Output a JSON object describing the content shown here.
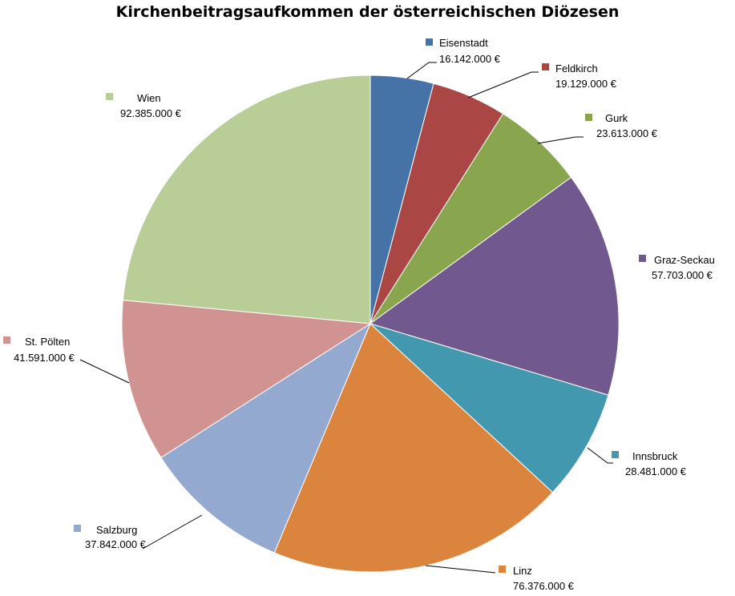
{
  "chart_data": {
    "type": "pie",
    "title": "Kirchenbeitragsaufkommen der österreichischen Diözesen",
    "legend": "none",
    "labels_outside": true,
    "slices": [
      {
        "name": "Eisenstadt",
        "value": 16142000,
        "value_label": "16.142.000 €",
        "color": "#4572A7"
      },
      {
        "name": "Feldkirch",
        "value": 19129000,
        "value_label": "19.129.000 €",
        "color": "#AA4643"
      },
      {
        "name": "Gurk",
        "value": 23613000,
        "value_label": "23.613.000 €",
        "color": "#89A54E"
      },
      {
        "name": "Graz-Seckau",
        "value": 57703000,
        "value_label": "57.703.000 €",
        "color": "#71588F"
      },
      {
        "name": "Innsbruck",
        "value": 28481000,
        "value_label": "28.481.000 €",
        "color": "#4198AF"
      },
      {
        "name": "Linz",
        "value": 76376000,
        "value_label": "76.376.000 €",
        "color": "#DB843D"
      },
      {
        "name": "Salzburg",
        "value": 37842000,
        "value_label": "37.842.000 €",
        "color": "#93A9CF"
      },
      {
        "name": "St. Pölten",
        "value": 41591000,
        "value_label": "41.591.000 €",
        "color": "#D19392"
      },
      {
        "name": "Wien",
        "value": 92385000,
        "value_label": "92.385.000 €",
        "color": "#B9CD96"
      }
    ]
  }
}
